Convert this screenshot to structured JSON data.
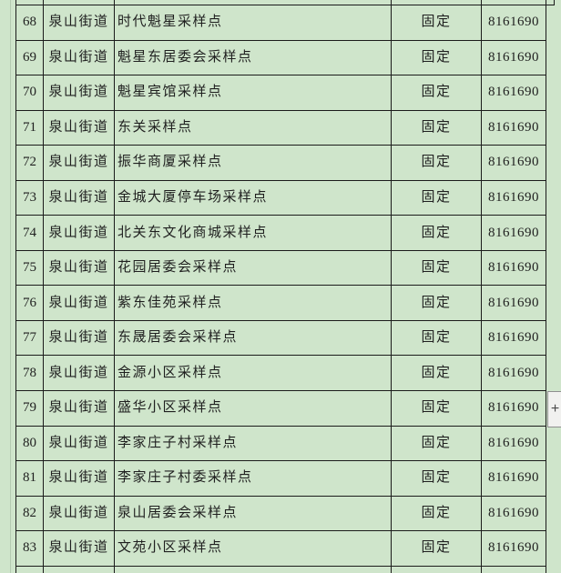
{
  "colors": {
    "background": "#cfe5cb",
    "grid_border": "#1b1b1b",
    "text": "#1f1f1f",
    "plus_button_bg": "#f1f1ef",
    "plus_button_border": "#8f8f8f"
  },
  "controls": {
    "plus_label": "+"
  },
  "table": {
    "rows": [
      {
        "no": "68",
        "street": "泉山街道",
        "site": "时代魁星采样点",
        "type": "固定",
        "phone": "8161690"
      },
      {
        "no": "69",
        "street": "泉山街道",
        "site": "魁星东居委会采样点",
        "type": "固定",
        "phone": "8161690"
      },
      {
        "no": "70",
        "street": "泉山街道",
        "site": "魁星宾馆采样点",
        "type": "固定",
        "phone": "8161690"
      },
      {
        "no": "71",
        "street": "泉山街道",
        "site": "东关采样点",
        "type": "固定",
        "phone": "8161690"
      },
      {
        "no": "72",
        "street": "泉山街道",
        "site": "振华商厦采样点",
        "type": "固定",
        "phone": "8161690"
      },
      {
        "no": "73",
        "street": "泉山街道",
        "site": "金城大厦停车场采样点",
        "type": "固定",
        "phone": "8161690"
      },
      {
        "no": "74",
        "street": "泉山街道",
        "site": "北关东文化商城采样点",
        "type": "固定",
        "phone": "8161690"
      },
      {
        "no": "75",
        "street": "泉山街道",
        "site": "花园居委会采样点",
        "type": "固定",
        "phone": "8161690"
      },
      {
        "no": "76",
        "street": "泉山街道",
        "site": "紫东佳苑采样点",
        "type": "固定",
        "phone": "8161690"
      },
      {
        "no": "77",
        "street": "泉山街道",
        "site": "东晟居委会采样点",
        "type": "固定",
        "phone": "8161690"
      },
      {
        "no": "78",
        "street": "泉山街道",
        "site": "金源小区采样点",
        "type": "固定",
        "phone": "8161690"
      },
      {
        "no": "79",
        "street": "泉山街道",
        "site": "盛华小区采样点",
        "type": "固定",
        "phone": "8161690"
      },
      {
        "no": "80",
        "street": "泉山街道",
        "site": "李家庄子村采样点",
        "type": "固定",
        "phone": "8161690"
      },
      {
        "no": "81",
        "street": "泉山街道",
        "site": "李家庄子村委采样点",
        "type": "固定",
        "phone": "8161690"
      },
      {
        "no": "82",
        "street": "泉山街道",
        "site": "泉山居委会采样点",
        "type": "固定",
        "phone": "8161690"
      },
      {
        "no": "83",
        "street": "泉山街道",
        "site": "文苑小区采样点",
        "type": "固定",
        "phone": "8161690"
      }
    ]
  }
}
